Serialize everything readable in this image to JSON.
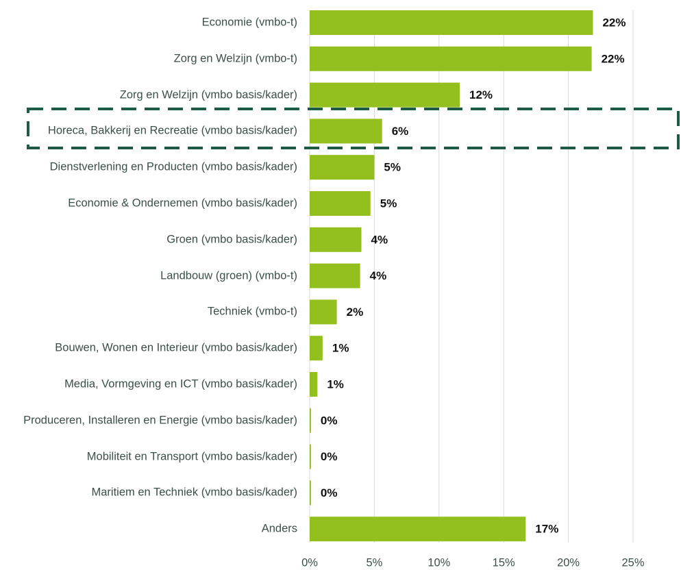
{
  "chart_data": {
    "type": "barh",
    "categories": [
      "Economie (vmbo-t)",
      "Zorg en Welzijn (vmbo-t)",
      "Zorg en Welzijn (vmbo basis/kader)",
      "Horeca, Bakkerij en Recreatie (vmbo basis/kader)",
      "Dienstverlening en Producten (vmbo basis/kader)",
      "Economie & Ondernemen (vmbo basis/kader)",
      "Groen (vmbo basis/kader)",
      "Landbouw (groen) (vmbo-t)",
      "Techniek (vmbo-t)",
      "Bouwen, Wonen en Interieur (vmbo basis/kader)",
      "Media, Vormgeving en ICT (vmbo basis/kader)",
      "Produceren, Installeren en Energie (vmbo basis/kader)",
      "Mobiliteit en Transport (vmbo basis/kader)",
      "Maritiem en Techniek (vmbo basis/kader)",
      "Anders"
    ],
    "values": [
      21.9,
      21.8,
      11.6,
      5.6,
      5.0,
      4.7,
      4.0,
      3.9,
      2.1,
      1.0,
      0.6,
      0.1,
      0.1,
      0.1,
      16.7
    ],
    "value_labels": [
      "22%",
      "22%",
      "12%",
      "6%",
      "5%",
      "5%",
      "4%",
      "4%",
      "2%",
      "1%",
      "1%",
      "0%",
      "0%",
      "0%",
      "17%"
    ],
    "color": "#93c01f",
    "xlim": [
      0,
      28
    ],
    "xticks": [
      {
        "value": 0,
        "label": "0%"
      },
      {
        "value": 5,
        "label": "5%"
      },
      {
        "value": 10,
        "label": "10%"
      },
      {
        "value": 15,
        "label": "15%"
      },
      {
        "value": 20,
        "label": "20%"
      },
      {
        "value": 25,
        "label": "25%"
      }
    ],
    "grid": true
  }
}
